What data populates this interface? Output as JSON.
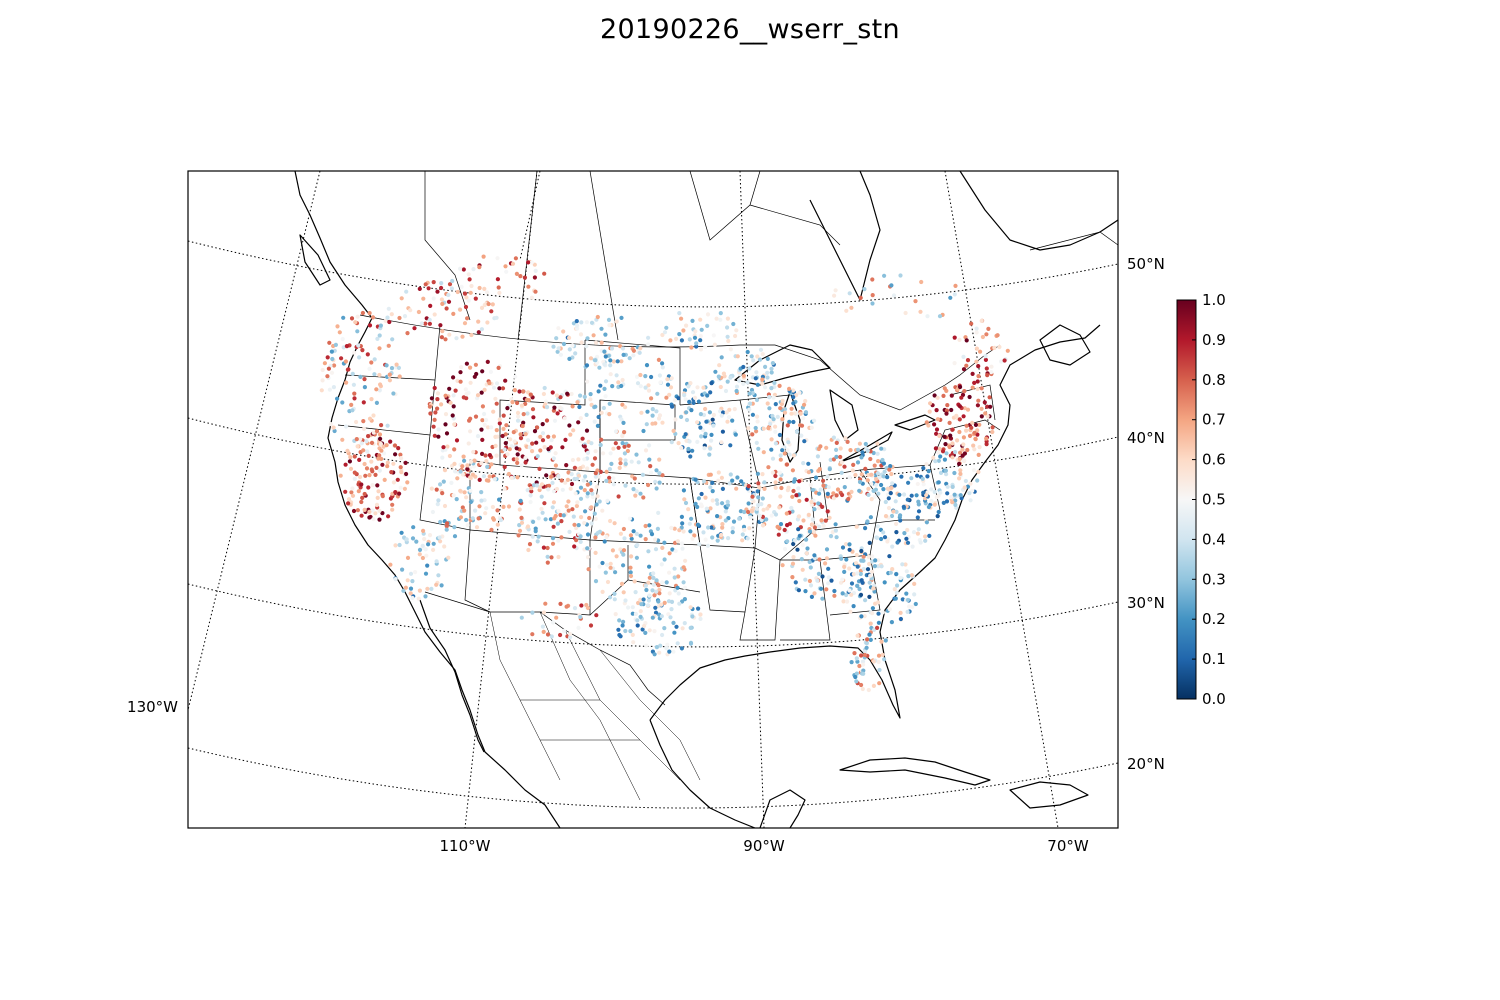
{
  "title": "20190226__wserr_stn",
  "map": {
    "projection": "lambert-conformal-conic",
    "region": "North America (CONUS)",
    "features": [
      "coastlines",
      "country-borders",
      "state-borders",
      "graticule"
    ]
  },
  "graticule": {
    "lat_labels": [
      "50°N",
      "40°N",
      "30°N",
      "20°N"
    ],
    "lon_labels": [
      "130°W",
      "110°W",
      "90°W",
      "70°W"
    ]
  },
  "colorbar": {
    "colormap": "RdBu_r",
    "min": 0.0,
    "max": 1.0,
    "ticks": [
      "0.0",
      "0.1",
      "0.2",
      "0.3",
      "0.4",
      "0.5",
      "0.6",
      "0.7",
      "0.8",
      "0.9",
      "1.0"
    ],
    "stops": [
      "#053061",
      "#2166ac",
      "#4393c3",
      "#92c5de",
      "#d1e5f0",
      "#f7f7f7",
      "#fddbc7",
      "#f4a582",
      "#d6604d",
      "#b2182b",
      "#67001f"
    ]
  },
  "chart_data": {
    "type": "scatter",
    "title": "20190226__wserr_stn",
    "xlabel": "",
    "ylabel": "",
    "value_range": [
      0.0,
      1.0
    ]
  }
}
